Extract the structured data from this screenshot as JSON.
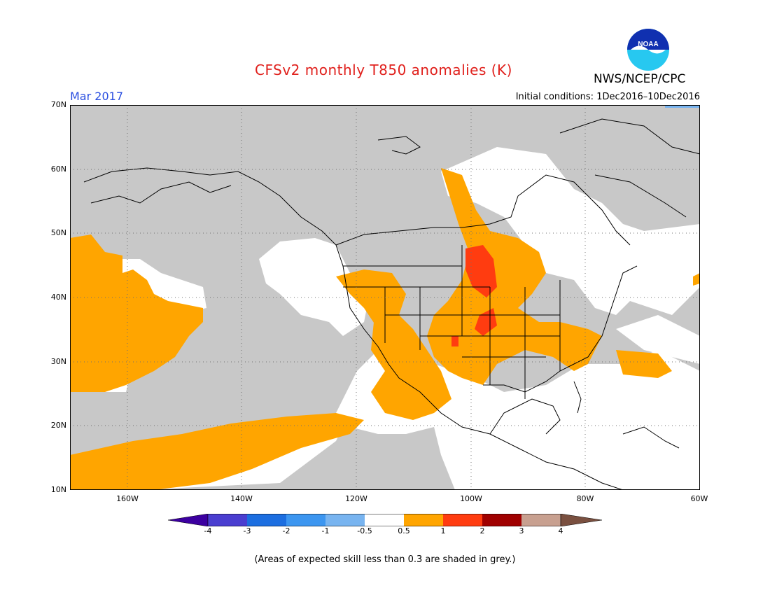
{
  "header": {
    "title": "CFSv2 monthly T850 anomalies (K)",
    "agency": "NWS/NCEP/CPC",
    "logo_text": "NOAA",
    "month": "Mar 2017",
    "initial_conditions": "Initial conditions:  1Dec2016–10Dec2016"
  },
  "map": {
    "lat_labels": [
      "70N",
      "60N",
      "50N",
      "40N",
      "30N",
      "20N",
      "10N"
    ],
    "lon_labels": [
      "160W",
      "140W",
      "120W",
      "100W",
      "80W",
      "60W"
    ],
    "extent": {
      "lon_min": -170,
      "lon_max": -60,
      "lat_min": 10,
      "lat_max": 70
    },
    "colors": {
      "grey_low_skill": "#c8c8c8",
      "anom_0_5_to_1": "#ffa500",
      "anom_1_to_2": "#ff3c10",
      "land_outline": "#000000"
    },
    "anomaly_regions": [
      {
        "name": "Central US warm anomaly",
        "range": "0.5 to 1"
      },
      {
        "name": "Northern Plains core",
        "range": "1 to 2"
      },
      {
        "name": "Subtropical eastern Pacific band",
        "range": "0.5 to 1"
      },
      {
        "name": "North Pacific warm patch",
        "range": "0.5 to 1"
      }
    ]
  },
  "colorbar": {
    "labels": [
      "-4",
      "-3",
      "-2",
      "-1",
      "-0.5",
      "0.5",
      "1",
      "2",
      "3",
      "4"
    ],
    "colors": [
      "#3c00a0",
      "#4a3ed0",
      "#1c6ee0",
      "#3c96f0",
      "#78b4f0",
      "#ffffff",
      "#ffa500",
      "#ff3c10",
      "#a00000",
      "#c8a090",
      "#7a5040"
    ]
  },
  "footnote": "(Areas of expected skill less than 0.3 are shaded in grey.)"
}
